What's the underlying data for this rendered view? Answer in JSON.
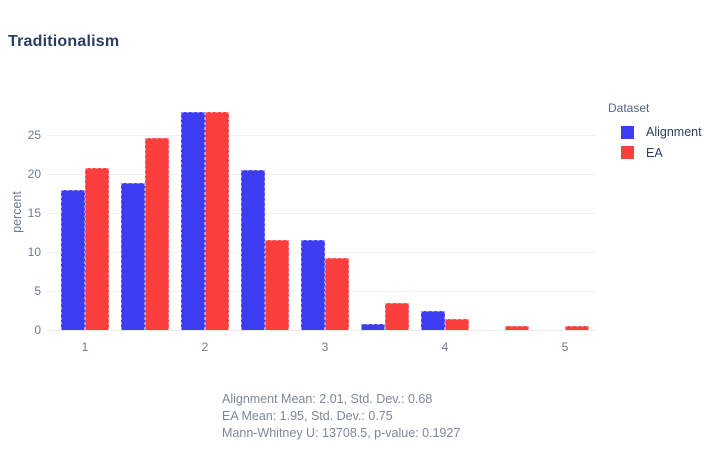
{
  "chart_data": {
    "type": "bar",
    "title": "Traditionalism",
    "categories": [
      1,
      1.5,
      2,
      2.5,
      3,
      3.5,
      4,
      4.5,
      5
    ],
    "series": [
      {
        "name": "Alignment",
        "color": "#3e3cf2",
        "values": [
          18,
          18.8,
          27.9,
          20.5,
          11.5,
          0.8,
          2.4,
          0,
          0
        ]
      },
      {
        "name": "EA",
        "color": "#fc3e3e",
        "values": [
          20.8,
          24.6,
          28,
          11.6,
          9.2,
          3.5,
          1.4,
          0.5,
          0.5
        ]
      }
    ],
    "xlabel": "",
    "ylabel": "percent",
    "x_ticks": [
      1,
      2,
      3,
      4,
      5
    ],
    "y_ticks": [
      0,
      5,
      10,
      15,
      20,
      25
    ],
    "ylim": [
      0,
      29.5
    ],
    "grid": true,
    "legend_title": "Dataset",
    "legend_position": "outside-top-right"
  },
  "footer": {
    "line1": "Alignment Mean: 2.01, Std. Dev.: 0.68",
    "line2": "EA Mean: 1.95, Std. Dev.: 0.75",
    "line3": "Mann-Whitney U: 13708.5, p-value: 0.1927"
  },
  "colors": {
    "title_text": "#2a3f5f",
    "axis_text": "#6b7a90",
    "legend_title_text": "#506784",
    "legend_item_text": "#2a3f5f",
    "footer_text": "#7e8699",
    "gridline": "#f0f1f4",
    "zero_line": "#e8eaee",
    "alignment_bar": "#3e3cf2",
    "ea_bar": "#fc3e3e",
    "background": "#ffffff"
  }
}
